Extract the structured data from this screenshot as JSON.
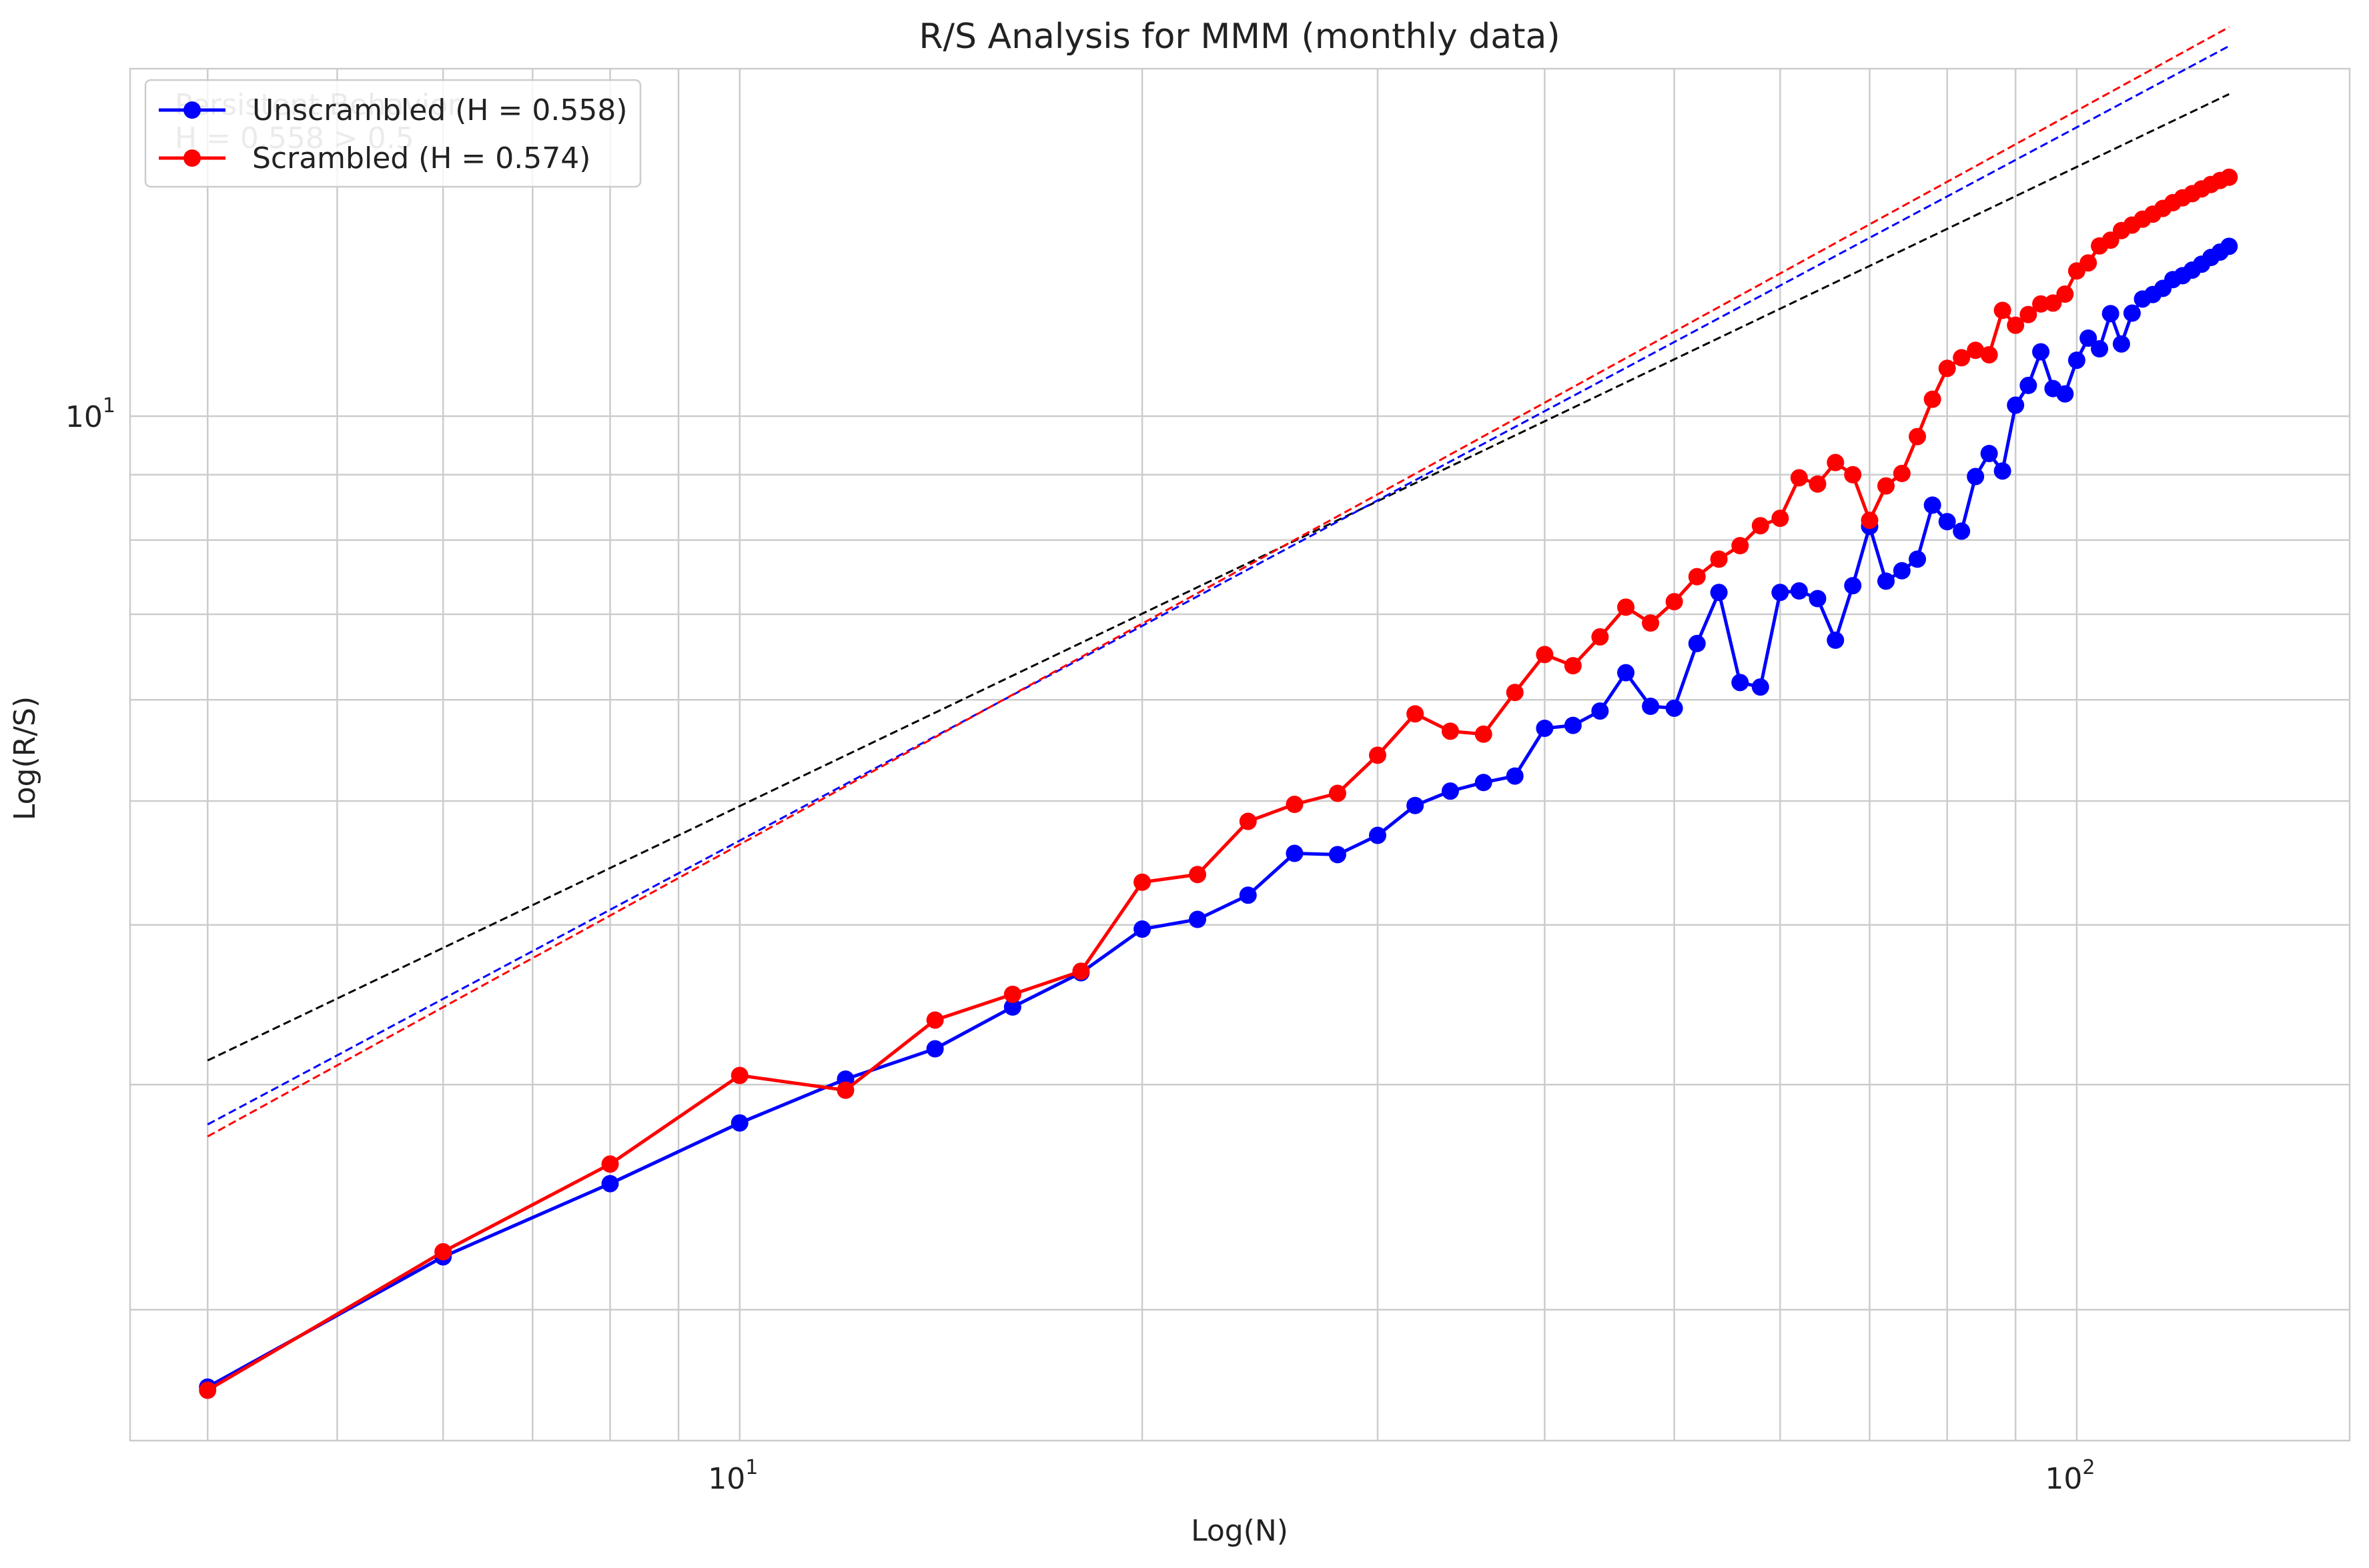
{
  "chart_data": {
    "type": "line",
    "title": "R/S Analysis for MMM (monthly data)",
    "xlabel": "Log(N)",
    "ylabel": "Log(R/S)",
    "x_scale": "log",
    "y_scale": "log",
    "xlim": [
      3.5,
      160
    ],
    "ylim": [
      1.58,
      18.7
    ],
    "grid": true,
    "legend_position": "top-left",
    "annotation": [
      "Persistent Behavior",
      "H = 0.558 > 0.5"
    ],
    "x_tick_labels": [
      {
        "value": 10,
        "base": "10",
        "exp": "1"
      },
      {
        "value": 100,
        "base": "10",
        "exp": "2"
      }
    ],
    "y_tick_labels": [
      {
        "value": 10,
        "base": "10",
        "exp": "1"
      }
    ],
    "series": [
      {
        "name": "Unscrambled (H = 0.558)",
        "color": "#0000ff",
        "marker": "circle",
        "x": [
          4,
          6,
          8,
          10,
          12,
          14,
          16,
          18,
          20,
          22,
          24,
          26,
          28,
          30,
          32,
          34,
          36,
          38,
          40,
          42,
          44,
          46,
          48,
          50,
          52,
          54,
          56,
          58,
          60,
          62,
          64,
          66,
          68,
          70,
          72,
          74,
          76,
          78,
          80,
          82,
          84,
          86,
          88,
          90,
          92,
          94,
          96,
          98,
          100,
          102,
          104,
          106,
          108,
          110,
          112,
          114,
          116,
          118,
          120,
          122,
          124,
          126,
          128,
          130
        ],
        "y": [
          1.74,
          2.2,
          2.51,
          2.8,
          3.03,
          3.2,
          3.45,
          3.67,
          3.97,
          4.04,
          4.22,
          4.55,
          4.54,
          4.7,
          4.96,
          5.09,
          5.17,
          5.23,
          5.7,
          5.73,
          5.88,
          6.3,
          5.93,
          5.91,
          6.64,
          7.28,
          6.19,
          6.14,
          7.28,
          7.3,
          7.2,
          6.68,
          7.37,
          8.2,
          7.43,
          7.57,
          7.73,
          8.52,
          8.27,
          8.13,
          8.97,
          9.35,
          9.06,
          10.2,
          10.57,
          11.23,
          10.51,
          10.41,
          11.06,
          11.51,
          11.29,
          12.03,
          11.39,
          12.04,
          12.35,
          12.45,
          12.59,
          12.79,
          12.88,
          13.01,
          13.15,
          13.31,
          13.44,
          13.58
        ],
        "fit_slope": 0.558,
        "fit_intercept_log10": 0.11,
        "fit_color": "#0000ff"
      },
      {
        "name": "Scrambled (H = 0.574)",
        "color": "#ff0000",
        "marker": "circle",
        "x": [
          4,
          6,
          8,
          10,
          12,
          14,
          16,
          18,
          20,
          22,
          24,
          26,
          28,
          30,
          32,
          34,
          36,
          38,
          40,
          42,
          44,
          46,
          48,
          50,
          52,
          54,
          56,
          58,
          60,
          62,
          64,
          66,
          68,
          70,
          72,
          74,
          76,
          78,
          80,
          82,
          84,
          86,
          88,
          90,
          92,
          94,
          96,
          98,
          100,
          102,
          104,
          106,
          108,
          110,
          112,
          114,
          116,
          118,
          120,
          122,
          124,
          126,
          128,
          130
        ],
        "y": [
          1.73,
          2.22,
          2.6,
          3.05,
          2.97,
          3.37,
          3.53,
          3.68,
          4.32,
          4.38,
          4.82,
          4.97,
          5.07,
          5.43,
          5.85,
          5.67,
          5.64,
          6.08,
          6.51,
          6.38,
          6.72,
          7.09,
          6.89,
          7.16,
          7.49,
          7.73,
          7.92,
          8.21,
          8.32,
          8.95,
          8.85,
          9.2,
          9.0,
          8.29,
          8.82,
          9.02,
          9.64,
          10.31,
          10.9,
          11.11,
          11.26,
          11.17,
          12.1,
          11.78,
          12.01,
          12.24,
          12.26,
          12.46,
          12.99,
          13.18,
          13.59,
          13.73,
          13.97,
          14.11,
          14.26,
          14.39,
          14.54,
          14.69,
          14.82,
          14.93,
          15.06,
          15.18,
          15.29,
          15.38
        ],
        "fit_slope": 0.574,
        "fit_intercept_log10": 0.091,
        "fit_color": "#ff0000"
      }
    ],
    "reference_line": {
      "slope": 0.5,
      "intercept_log10": 0.195,
      "color": "#000000",
      "style": "dashed"
    }
  }
}
